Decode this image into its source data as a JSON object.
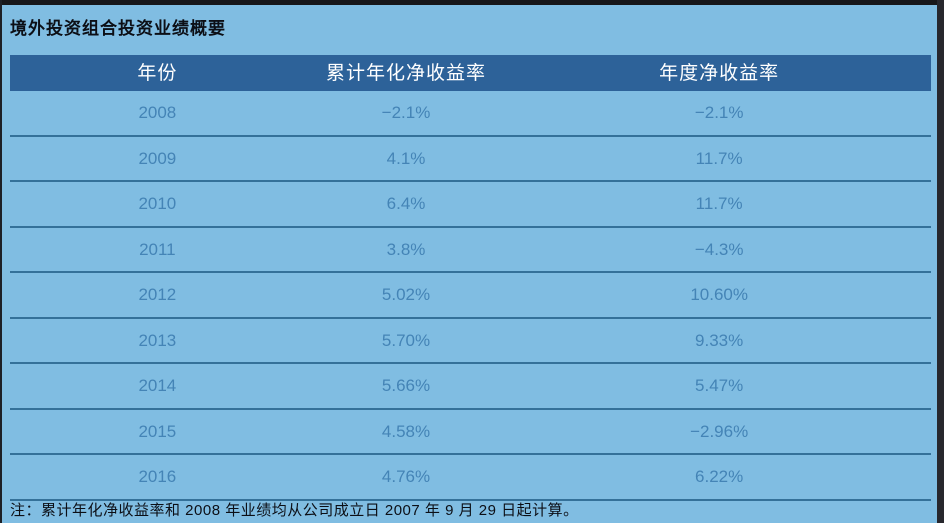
{
  "page": {
    "title": "境外投资组合投资业绩概要",
    "note": "注：累计年化净收益率和 2008 年业绩均从公司成立日 2007 年 9 月 29 日起计算。"
  },
  "table": {
    "columns": [
      "年份",
      "累计年化净收益率",
      "年度净收益率"
    ],
    "rows": [
      [
        "2008",
        "−2.1%",
        "−2.1%"
      ],
      [
        "2009",
        "4.1%",
        "11.7%"
      ],
      [
        "2010",
        "6.4%",
        "11.7%"
      ],
      [
        "2011",
        "3.8%",
        "−4.3%"
      ],
      [
        "2012",
        "5.02%",
        "10.60%"
      ],
      [
        "2013",
        "5.70%",
        "9.33%"
      ],
      [
        "2014",
        "5.66%",
        "5.47%"
      ],
      [
        "2015",
        "4.58%",
        "−2.96%"
      ],
      [
        "2016",
        "4.76%",
        "6.22%"
      ]
    ]
  },
  "colors": {
    "background": "#80bde2",
    "header_bg": "#2d6299",
    "header_text": "#ffffff",
    "row_text": "#4484b6",
    "separator": "#347199",
    "title_text": "#0c0f16",
    "frame_dark": "#27272d"
  }
}
